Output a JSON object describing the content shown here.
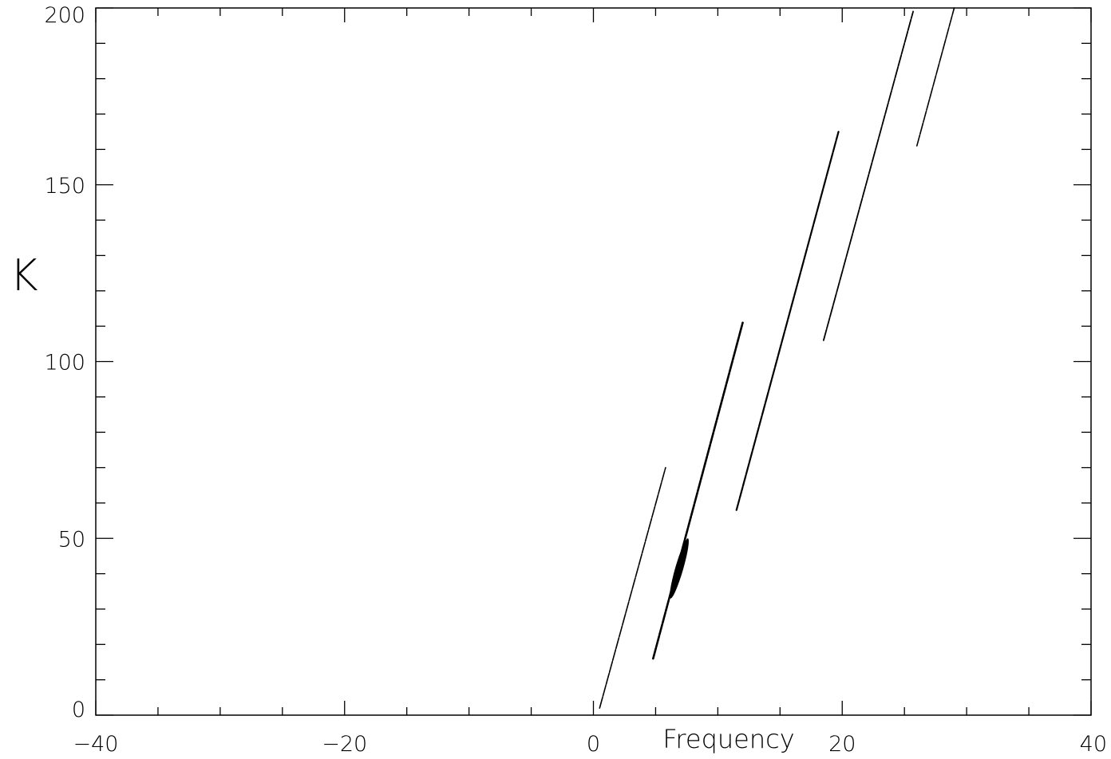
{
  "chart_data": {
    "type": "line",
    "title": "",
    "xlabel": "Frequency",
    "ylabel": "K",
    "xlim": [
      -40,
      40
    ],
    "ylim": [
      0,
      200
    ],
    "x_ticks": [
      -40,
      -20,
      0,
      20,
      40
    ],
    "x_tick_labels": [
      "−40",
      "−20",
      "0",
      "20",
      "40"
    ],
    "y_ticks": [
      0,
      50,
      100,
      150,
      200
    ],
    "y_tick_labels": [
      "0",
      "50",
      "100",
      "150",
      "200"
    ],
    "x_minor_step": 5,
    "y_minor_step": 10,
    "grid": false,
    "series": [
      {
        "x": [
          0.5,
          5.8
        ],
        "y": [
          2,
          70
        ],
        "thick": 1.6
      },
      {
        "x": [
          4.8,
          12.0
        ],
        "y": [
          16,
          111
        ],
        "thick": 2.6
      },
      {
        "x": [
          11.5,
          19.7
        ],
        "y": [
          58,
          165
        ],
        "thick": 2.2
      },
      {
        "x": [
          18.5,
          25.7
        ],
        "y": [
          106,
          199
        ],
        "thick": 1.8
      },
      {
        "x": [
          26.0,
          29.0
        ],
        "y": [
          161,
          200
        ],
        "thick": 1.6
      }
    ],
    "blob": {
      "x": [
        6.2,
        7.6
      ],
      "y": [
        33,
        50
      ]
    }
  }
}
